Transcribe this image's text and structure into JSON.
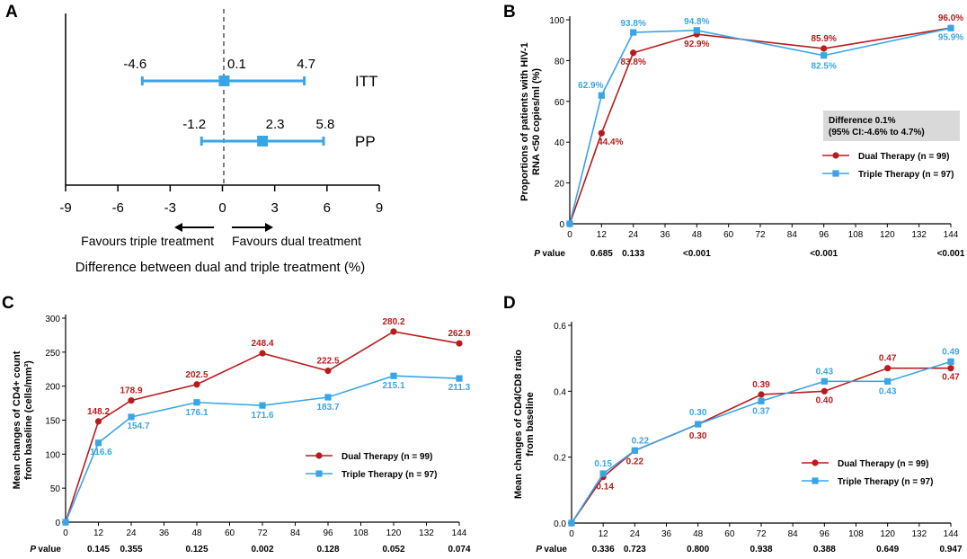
{
  "colors": {
    "dual": "#b71c1c",
    "triple": "#3aa5e6",
    "axis": "#000000",
    "note_bg": "#d9d9d9"
  },
  "chart_data": [
    {
      "panel": "A",
      "type": "forest",
      "xlabel": "Difference between dual and triple treatment (%)",
      "xlim": [
        -9,
        9
      ],
      "xticks": [
        -9,
        -6,
        -3,
        0,
        3,
        6,
        9
      ],
      "left_arrow_label": "Favours triple treatment",
      "right_arrow_label": "Favours dual treatment",
      "rows": [
        {
          "label": "ITT",
          "estimate": 0.1,
          "lower": -4.6,
          "upper": 4.7,
          "estimate_label": "0.1",
          "lower_label": "-4.6",
          "upper_label": "4.7"
        },
        {
          "label": "PP",
          "estimate": 2.3,
          "lower": -1.2,
          "upper": 5.8,
          "estimate_label": "2.3",
          "lower_label": "-1.2",
          "upper_label": "5.8"
        }
      ]
    },
    {
      "panel": "B",
      "type": "line",
      "ylabel_lines": [
        "Proportions of  patients with HIV-1",
        "RNA <50 copies/ml (%)"
      ],
      "ylim": [
        0,
        100
      ],
      "yticks": [
        0,
        20,
        40,
        60,
        80,
        100
      ],
      "xticks": [
        0,
        12,
        24,
        36,
        48,
        60,
        72,
        84,
        96,
        108,
        120,
        132,
        144
      ],
      "series": [
        {
          "name": "Dual Therapy (n = 99)",
          "key": "dual",
          "x": [
            0,
            12,
            24,
            48,
            96,
            144
          ],
          "values": [
            0,
            44.4,
            83.8,
            92.9,
            85.9,
            96.0
          ],
          "labels": [
            "",
            "44.4%",
            "83.8%",
            "92.9%",
            "85.9%",
            "96.0%"
          ]
        },
        {
          "name": "Triple Therapy (n = 97)",
          "key": "triple",
          "x": [
            0,
            12,
            24,
            48,
            96,
            144
          ],
          "values": [
            0,
            62.9,
            93.8,
            94.8,
            82.5,
            95.9
          ],
          "labels": [
            "",
            "62.9%",
            "93.8%",
            "94.8%",
            "82.5%",
            "95.9%"
          ]
        }
      ],
      "annotation": [
        "Difference 0.1%",
        "(95% CI:-4.6% to 4.7%)"
      ],
      "pvalue_label": "P value",
      "pvalues": [
        {
          "x": 12,
          "text": "0.685"
        },
        {
          "x": 24,
          "text": "0.133"
        },
        {
          "x": 48,
          "text": "<0.001"
        },
        {
          "x": 96,
          "text": "<0.001"
        },
        {
          "x": 144,
          "text": "<0.001"
        }
      ]
    },
    {
      "panel": "C",
      "type": "line",
      "ylabel_lines": [
        "Mean changes of CD4+ count",
        "from baseline (cells/mm³)"
      ],
      "ylim": [
        0,
        300
      ],
      "yticks": [
        0,
        50,
        100,
        150,
        200,
        250,
        300
      ],
      "xticks": [
        0,
        12,
        24,
        36,
        48,
        60,
        72,
        84,
        96,
        108,
        120,
        132,
        144
      ],
      "series": [
        {
          "name": "Dual Therapy (n = 99)",
          "key": "dual",
          "x": [
            0,
            12,
            24,
            48,
            72,
            96,
            120,
            144
          ],
          "values": [
            0,
            148.2,
            178.9,
            202.5,
            248.4,
            222.5,
            280.2,
            262.9
          ],
          "labels": [
            "",
            "148.2",
            "178.9",
            "202.5",
            "248.4",
            "222.5",
            "280.2",
            "262.9"
          ]
        },
        {
          "name": "Triple Therapy (n = 97)",
          "key": "triple",
          "x": [
            0,
            12,
            24,
            48,
            72,
            96,
            120,
            144
          ],
          "values": [
            0,
            116.6,
            154.7,
            176.1,
            171.6,
            183.7,
            215.1,
            211.3
          ],
          "labels": [
            "",
            "116.6",
            "154.7",
            "176.1",
            "171.6",
            "183.7",
            "215.1",
            "211.3"
          ]
        }
      ],
      "pvalue_label": "P value",
      "pvalues": [
        {
          "x": 12,
          "text": "0.145"
        },
        {
          "x": 24,
          "text": "0.355"
        },
        {
          "x": 48,
          "text": "0.125"
        },
        {
          "x": 72,
          "text": "0.002"
        },
        {
          "x": 96,
          "text": "0.128"
        },
        {
          "x": 120,
          "text": "0.052"
        },
        {
          "x": 144,
          "text": "0.074"
        }
      ]
    },
    {
      "panel": "D",
      "type": "line",
      "ylabel_lines": [
        "Mean changes of CD4/CD8 ratio",
        "from baseline"
      ],
      "ylim": [
        0,
        0.6
      ],
      "yticks": [
        0,
        0.2,
        0.4,
        0.6
      ],
      "ytick_labels": [
        "0.0",
        "0.2",
        "0.4",
        "0.6"
      ],
      "xticks": [
        0,
        12,
        24,
        36,
        48,
        60,
        72,
        84,
        96,
        108,
        120,
        132,
        144
      ],
      "series": [
        {
          "name": "Dual Therapy (n = 99)",
          "key": "dual",
          "x": [
            0,
            12,
            24,
            48,
            72,
            96,
            120,
            144
          ],
          "values": [
            0,
            0.14,
            0.22,
            0.3,
            0.39,
            0.4,
            0.47,
            0.47
          ],
          "labels": [
            "",
            "0.14",
            "0.22",
            "0.30",
            "0.39",
            "0.40",
            "0.47",
            "0.47"
          ]
        },
        {
          "name": "Triple Therapy (n = 97)",
          "key": "triple",
          "x": [
            0,
            12,
            24,
            48,
            72,
            96,
            120,
            144
          ],
          "values": [
            0,
            0.15,
            0.22,
            0.3,
            0.37,
            0.43,
            0.43,
            0.49
          ],
          "labels": [
            "",
            "0.15",
            "0.22",
            "0.30",
            "0.37",
            "0.43",
            "0.43",
            "0.49"
          ]
        }
      ],
      "pvalue_label": "P value",
      "pvalues": [
        {
          "x": 12,
          "text": "0.336"
        },
        {
          "x": 24,
          "text": "0.723"
        },
        {
          "x": 48,
          "text": "0.800"
        },
        {
          "x": 72,
          "text": "0.938"
        },
        {
          "x": 96,
          "text": "0.388"
        },
        {
          "x": 120,
          "text": "0.649"
        },
        {
          "x": 144,
          "text": "0.947"
        }
      ]
    }
  ]
}
